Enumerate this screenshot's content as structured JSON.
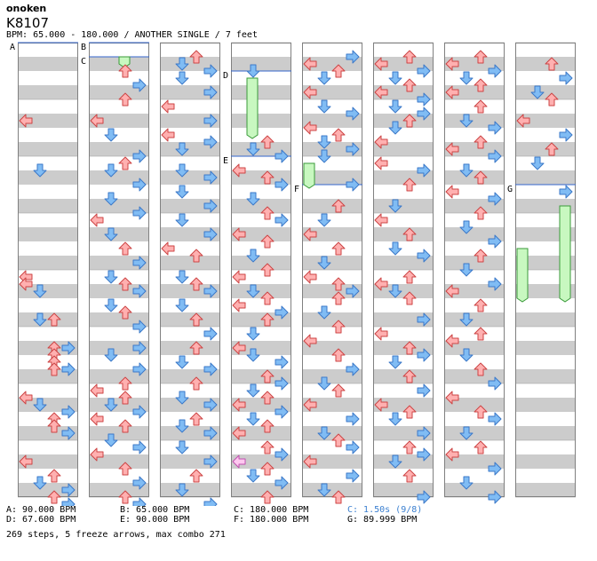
{
  "header": {
    "artist": "onoken",
    "song_title": "K8107",
    "meta_line": "BPM: 65.000 - 180.000 / ANOTHER SINGLE / 7 feet"
  },
  "colors": {
    "bg_light": "#ffffff",
    "bg_dark": "#cccccc",
    "border": "#808080",
    "arrow_red_fill": "#ffb0b0",
    "arrow_red_stroke": "#cc4444",
    "arrow_blue_fill": "#80bcf4",
    "arrow_blue_stroke": "#3b78c8",
    "arrow_pink_fill": "#ffc8f0",
    "arrow_pink_stroke": "#c050b0",
    "freeze_fill": "#c8f8c0",
    "freeze_stroke": "#3a9a3a",
    "marker_line": "#3366cc"
  },
  "chart_data": {
    "type": "stepchart",
    "columns": 8,
    "lanes": 4,
    "measures_per_column": 8,
    "markers": [
      {
        "label": "A",
        "col": 0,
        "pos": 0
      },
      {
        "label": "B",
        "col": 1,
        "pos": 0
      },
      {
        "label": "C",
        "col": 1,
        "pos": 0.25
      },
      {
        "label": "D",
        "col": 3,
        "pos": 0.5
      },
      {
        "label": "E",
        "col": 3,
        "pos": 2.0
      },
      {
        "label": "F",
        "col": 4,
        "pos": 2.5
      },
      {
        "label": "G",
        "col": 7,
        "pos": 2.5
      }
    ],
    "freezes": [
      {
        "col": 1,
        "lane": 2,
        "start": 0.125,
        "end": 0.375
      },
      {
        "col": 3,
        "lane": 1,
        "start": 0.5,
        "end": 1.625
      },
      {
        "col": 4,
        "lane": 0,
        "start": 2.0,
        "end": 2.5
      },
      {
        "col": 7,
        "lane": 0,
        "start": 3.5,
        "end": 4.5
      },
      {
        "col": 7,
        "lane": 3,
        "start": 2.75,
        "end": 4.5
      }
    ],
    "notes": [
      [
        [
          1.25,
          0
        ],
        [
          2.125,
          1
        ],
        [
          4.0,
          0
        ],
        [
          4.125,
          0
        ],
        [
          4.25,
          1
        ],
        [
          4.75,
          1
        ],
        [
          4.75,
          2
        ],
        [
          5.25,
          3
        ],
        [
          5.25,
          2
        ],
        [
          5.375,
          2
        ],
        [
          5.5,
          2
        ],
        [
          5.625,
          2
        ],
        [
          5.625,
          3
        ],
        [
          6.125,
          0
        ],
        [
          6.25,
          1
        ],
        [
          6.375,
          3
        ],
        [
          6.5,
          2
        ],
        [
          6.625,
          2
        ],
        [
          6.75,
          3
        ],
        [
          7.25,
          0
        ],
        [
          7.5,
          2
        ],
        [
          7.625,
          1
        ],
        [
          7.75,
          3
        ],
        [
          7.875,
          2
        ],
        [
          8.0,
          3
        ]
      ],
      [
        [
          0.375,
          2
        ],
        [
          0.625,
          3
        ],
        [
          0.875,
          2
        ],
        [
          1.25,
          0
        ],
        [
          1.5,
          1
        ],
        [
          1.875,
          3
        ],
        [
          2.0,
          2
        ],
        [
          2.125,
          1
        ],
        [
          2.375,
          3
        ],
        [
          2.625,
          1
        ],
        [
          2.875,
          3
        ],
        [
          3.0,
          0
        ],
        [
          3.25,
          1
        ],
        [
          3.5,
          2
        ],
        [
          3.75,
          3
        ],
        [
          4.0,
          1
        ],
        [
          4.125,
          2
        ],
        [
          4.25,
          3
        ],
        [
          4.5,
          1
        ],
        [
          4.625,
          2
        ],
        [
          4.875,
          3
        ],
        [
          5.25,
          3
        ],
        [
          5.375,
          1
        ],
        [
          5.625,
          3
        ],
        [
          5.875,
          2
        ],
        [
          6.0,
          0
        ],
        [
          6.125,
          2
        ],
        [
          6.25,
          1
        ],
        [
          6.375,
          3
        ],
        [
          6.5,
          0
        ],
        [
          6.625,
          2
        ],
        [
          6.875,
          1
        ],
        [
          7.0,
          3
        ],
        [
          7.125,
          0
        ],
        [
          7.375,
          2
        ],
        [
          7.625,
          3
        ],
        [
          7.875,
          2
        ],
        [
          8.0,
          3
        ]
      ],
      [
        [
          0.125,
          2
        ],
        [
          0.25,
          1
        ],
        [
          0.375,
          3
        ],
        [
          0.5,
          1
        ],
        [
          0.75,
          3
        ],
        [
          1.0,
          0
        ],
        [
          1.25,
          3
        ],
        [
          1.5,
          0
        ],
        [
          1.625,
          3
        ],
        [
          1.75,
          1
        ],
        [
          2.125,
          1
        ],
        [
          2.25,
          3
        ],
        [
          2.5,
          1
        ],
        [
          2.75,
          3
        ],
        [
          3.0,
          1
        ],
        [
          3.25,
          3
        ],
        [
          3.5,
          0
        ],
        [
          3.625,
          2
        ],
        [
          4.0,
          1
        ],
        [
          4.125,
          2
        ],
        [
          4.25,
          3
        ],
        [
          4.5,
          1
        ],
        [
          4.75,
          2
        ],
        [
          5.0,
          3
        ],
        [
          5.25,
          2
        ],
        [
          5.5,
          1
        ],
        [
          5.625,
          3
        ],
        [
          5.875,
          2
        ],
        [
          6.125,
          1
        ],
        [
          6.25,
          3
        ],
        [
          6.5,
          2
        ],
        [
          6.625,
          1
        ],
        [
          6.75,
          3
        ],
        [
          7.0,
          1
        ],
        [
          7.25,
          3
        ],
        [
          7.5,
          2
        ],
        [
          7.75,
          1
        ],
        [
          8.0,
          3
        ]
      ],
      [
        [
          0.375,
          1
        ],
        [
          1.625,
          2
        ],
        [
          1.75,
          1
        ],
        [
          1.875,
          3
        ],
        [
          2.125,
          0
        ],
        [
          2.25,
          2
        ],
        [
          2.375,
          3
        ],
        [
          2.625,
          1
        ],
        [
          2.875,
          2
        ],
        [
          3.0,
          3
        ],
        [
          3.25,
          0
        ],
        [
          3.375,
          2
        ],
        [
          3.625,
          1
        ],
        [
          3.875,
          2
        ],
        [
          4.0,
          0
        ],
        [
          4.25,
          1
        ],
        [
          4.375,
          2
        ],
        [
          4.5,
          0
        ],
        [
          4.625,
          3
        ],
        [
          4.75,
          2
        ],
        [
          5.0,
          1
        ],
        [
          5.25,
          0
        ],
        [
          5.375,
          1
        ],
        [
          5.5,
          3
        ],
        [
          5.75,
          2
        ],
        [
          5.875,
          3
        ],
        [
          6.0,
          1
        ],
        [
          6.125,
          2
        ],
        [
          6.25,
          0
        ],
        [
          6.375,
          3
        ],
        [
          6.5,
          1
        ],
        [
          6.625,
          2
        ],
        [
          6.75,
          0
        ],
        [
          7.0,
          2
        ],
        [
          7.125,
          3
        ],
        [
          7.25,
          0
        ],
        [
          7.375,
          2
        ],
        [
          7.5,
          1
        ],
        [
          7.625,
          3
        ],
        [
          7.875,
          2
        ]
      ],
      [
        [
          0.125,
          3
        ],
        [
          0.25,
          0
        ],
        [
          0.375,
          2
        ],
        [
          0.5,
          1
        ],
        [
          0.75,
          0
        ],
        [
          1.0,
          1
        ],
        [
          1.125,
          3
        ],
        [
          1.375,
          0
        ],
        [
          1.5,
          2
        ],
        [
          1.625,
          1
        ],
        [
          1.75,
          3
        ],
        [
          1.875,
          1
        ],
        [
          2.375,
          3
        ],
        [
          2.75,
          2
        ],
        [
          3.0,
          1
        ],
        [
          3.25,
          0
        ],
        [
          3.5,
          2
        ],
        [
          3.75,
          1
        ],
        [
          4.0,
          0
        ],
        [
          4.125,
          2
        ],
        [
          4.25,
          3
        ],
        [
          4.375,
          2
        ],
        [
          4.625,
          1
        ],
        [
          4.875,
          2
        ],
        [
          5.125,
          0
        ],
        [
          5.375,
          2
        ],
        [
          5.625,
          3
        ],
        [
          5.875,
          1
        ],
        [
          6.0,
          2
        ],
        [
          6.25,
          0
        ],
        [
          6.5,
          3
        ],
        [
          6.75,
          1
        ],
        [
          6.875,
          2
        ],
        [
          7.0,
          3
        ],
        [
          7.25,
          0
        ],
        [
          7.5,
          3
        ],
        [
          7.75,
          1
        ],
        [
          7.875,
          2
        ]
      ],
      [
        [
          0.125,
          2
        ],
        [
          0.25,
          0
        ],
        [
          0.375,
          3
        ],
        [
          0.5,
          1
        ],
        [
          0.625,
          2
        ],
        [
          0.75,
          0
        ],
        [
          0.875,
          3
        ],
        [
          1.0,
          1
        ],
        [
          1.125,
          3
        ],
        [
          1.25,
          2
        ],
        [
          1.375,
          1
        ],
        [
          1.625,
          0
        ],
        [
          2.0,
          0
        ],
        [
          2.125,
          3
        ],
        [
          2.375,
          2
        ],
        [
          2.75,
          1
        ],
        [
          3.0,
          0
        ],
        [
          3.25,
          2
        ],
        [
          3.5,
          1
        ],
        [
          3.625,
          3
        ],
        [
          4.0,
          2
        ],
        [
          4.125,
          0
        ],
        [
          4.25,
          1
        ],
        [
          4.375,
          2
        ],
        [
          4.75,
          3
        ],
        [
          5.0,
          0
        ],
        [
          5.25,
          2
        ],
        [
          5.375,
          3
        ],
        [
          5.5,
          1
        ],
        [
          5.75,
          2
        ],
        [
          6.0,
          3
        ],
        [
          6.25,
          0
        ],
        [
          6.375,
          2
        ],
        [
          6.5,
          1
        ],
        [
          6.75,
          3
        ],
        [
          7.0,
          2
        ],
        [
          7.125,
          3
        ],
        [
          7.25,
          1
        ],
        [
          7.5,
          2
        ],
        [
          7.875,
          3
        ]
      ],
      [
        [
          0.125,
          2
        ],
        [
          0.25,
          0
        ],
        [
          0.375,
          3
        ],
        [
          0.5,
          1
        ],
        [
          0.625,
          2
        ],
        [
          0.75,
          0
        ],
        [
          1.0,
          2
        ],
        [
          1.25,
          1
        ],
        [
          1.375,
          3
        ],
        [
          1.625,
          2
        ],
        [
          1.75,
          0
        ],
        [
          1.875,
          3
        ],
        [
          2.125,
          1
        ],
        [
          2.25,
          2
        ],
        [
          2.5,
          0
        ],
        [
          2.625,
          3
        ],
        [
          2.875,
          2
        ],
        [
          3.125,
          1
        ],
        [
          3.375,
          3
        ],
        [
          3.625,
          2
        ],
        [
          3.875,
          1
        ],
        [
          4.125,
          3
        ],
        [
          4.25,
          0
        ],
        [
          4.5,
          2
        ],
        [
          4.75,
          1
        ],
        [
          5.0,
          2
        ],
        [
          5.125,
          0
        ],
        [
          5.375,
          1
        ],
        [
          5.625,
          2
        ],
        [
          5.875,
          3
        ],
        [
          6.125,
          0
        ],
        [
          6.375,
          2
        ],
        [
          6.5,
          3
        ],
        [
          6.75,
          1
        ],
        [
          7.0,
          2
        ],
        [
          7.125,
          0
        ],
        [
          7.375,
          3
        ],
        [
          7.625,
          1
        ],
        [
          7.875,
          3
        ]
      ],
      [
        [
          0.25,
          2
        ],
        [
          0.5,
          3
        ],
        [
          0.75,
          1
        ],
        [
          0.875,
          2
        ],
        [
          1.25,
          0
        ],
        [
          1.5,
          3
        ],
        [
          1.75,
          2
        ],
        [
          2.0,
          1
        ],
        [
          2.5,
          3
        ]
      ]
    ]
  },
  "legend": {
    "A": "A: 90.000 BPM",
    "B": "B: 65.000 BPM",
    "C": "C: 180.000 BPM",
    "C_stop": "C: 1.50s (9/8)",
    "D": "D: 67.600 BPM",
    "E": "E: 90.000 BPM",
    "F": "F: 180.000 BPM",
    "G": "G: 89.999 BPM"
  },
  "summary": "269 steps, 5 freeze arrows, max combo 271"
}
